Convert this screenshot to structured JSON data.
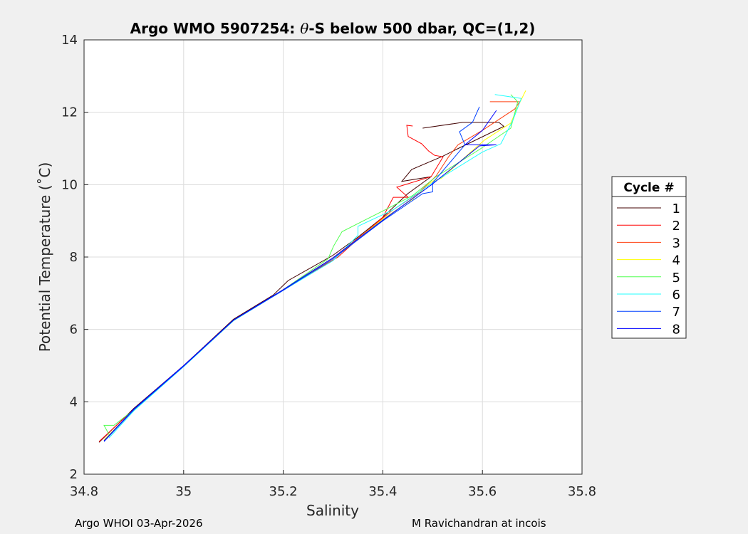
{
  "chart_data": {
    "type": "line",
    "title_prefix": "Argo WMO 5907254: ",
    "title_theta": "θ",
    "title_suffix": "-S below 500 dbar,  QC=(1,2)",
    "xlabel": "Salinity",
    "ylabel": "Potential Temperature (˚C)",
    "xlim": [
      34.8,
      35.8
    ],
    "ylim": [
      2,
      14
    ],
    "xticks": [
      "34.8",
      "35",
      "35.2",
      "35.4",
      "35.6",
      "35.8"
    ],
    "xtick_values": [
      34.8,
      35.0,
      35.2,
      35.4,
      35.6,
      35.8
    ],
    "yticks": [
      "2",
      "4",
      "6",
      "8",
      "10",
      "12",
      "14"
    ],
    "ytick_values": [
      2,
      4,
      6,
      8,
      10,
      12,
      14
    ],
    "grid": true,
    "legend_title": "Cycle #",
    "legend_placement": "right",
    "series": [
      {
        "name": "1",
        "color": "#400000",
        "points": [
          [
            34.83,
            2.88
          ],
          [
            34.9,
            3.82
          ],
          [
            35.0,
            5.0
          ],
          [
            35.1,
            6.28
          ],
          [
            35.18,
            6.95
          ],
          [
            35.21,
            7.35
          ],
          [
            35.3,
            8.05
          ],
          [
            35.35,
            8.55
          ],
          [
            35.4,
            9.1
          ],
          [
            35.45,
            9.75
          ],
          [
            35.497,
            10.22
          ],
          [
            35.438,
            10.09
          ],
          [
            35.458,
            10.42
          ],
          [
            35.521,
            10.79
          ],
          [
            35.547,
            10.97
          ],
          [
            35.643,
            11.61
          ],
          [
            35.633,
            11.72
          ],
          [
            35.56,
            11.72
          ],
          [
            35.48,
            11.56
          ]
        ]
      },
      {
        "name": "2",
        "color": "#ff0000",
        "points": [
          [
            34.83,
            2.9
          ],
          [
            34.9,
            3.8
          ],
          [
            35.0,
            5.0
          ],
          [
            35.1,
            6.26
          ],
          [
            35.2,
            7.1
          ],
          [
            35.31,
            8.0
          ],
          [
            35.35,
            8.5
          ],
          [
            35.4,
            9.1
          ],
          [
            35.421,
            9.65
          ],
          [
            35.451,
            9.65
          ],
          [
            35.428,
            9.93
          ],
          [
            35.497,
            10.22
          ],
          [
            35.521,
            10.77
          ],
          [
            35.504,
            10.81
          ],
          [
            35.492,
            10.93
          ],
          [
            35.478,
            11.13
          ],
          [
            35.451,
            11.33
          ],
          [
            35.448,
            11.64
          ],
          [
            35.46,
            11.62
          ]
        ]
      },
      {
        "name": "3",
        "color": "#ff4010",
        "points": [
          [
            34.84,
            2.92
          ],
          [
            34.9,
            3.78
          ],
          [
            35.0,
            4.98
          ],
          [
            35.1,
            6.25
          ],
          [
            35.2,
            7.1
          ],
          [
            35.3,
            7.98
          ],
          [
            35.38,
            8.85
          ],
          [
            35.42,
            9.3
          ],
          [
            35.47,
            9.75
          ],
          [
            35.507,
            10.24
          ],
          [
            35.532,
            10.77
          ],
          [
            35.551,
            11.1
          ],
          [
            35.6,
            11.5
          ],
          [
            35.665,
            12.09
          ],
          [
            35.675,
            12.29
          ],
          [
            35.615,
            12.29
          ]
        ]
      },
      {
        "name": "4",
        "color": "#ffff00",
        "points": [
          [
            34.84,
            2.95
          ],
          [
            34.9,
            3.78
          ],
          [
            35.0,
            4.98
          ],
          [
            35.1,
            6.24
          ],
          [
            35.2,
            7.1
          ],
          [
            35.3,
            7.95
          ],
          [
            35.4,
            9.05
          ],
          [
            35.46,
            9.6
          ],
          [
            35.5,
            10.1
          ],
          [
            35.518,
            10.18
          ],
          [
            35.571,
            10.83
          ],
          [
            35.604,
            11.23
          ],
          [
            35.657,
            11.7
          ],
          [
            35.673,
            12.21
          ],
          [
            35.687,
            12.6
          ]
        ]
      },
      {
        "name": "5",
        "color": "#50ff50",
        "points": [
          [
            34.85,
            3.1
          ],
          [
            34.84,
            3.35
          ],
          [
            34.86,
            3.35
          ],
          [
            34.9,
            3.78
          ],
          [
            35.0,
            4.98
          ],
          [
            35.1,
            6.25
          ],
          [
            35.2,
            7.1
          ],
          [
            35.29,
            7.95
          ],
          [
            35.301,
            8.3
          ],
          [
            35.318,
            8.7
          ],
          [
            35.404,
            9.3
          ],
          [
            35.46,
            9.7
          ],
          [
            35.507,
            10.22
          ],
          [
            35.594,
            10.97
          ],
          [
            35.657,
            11.56
          ],
          [
            35.671,
            12.29
          ],
          [
            35.657,
            12.49
          ]
        ]
      },
      {
        "name": "6",
        "color": "#20ffff",
        "points": [
          [
            34.85,
            3.0
          ],
          [
            34.9,
            3.75
          ],
          [
            35.0,
            4.97
          ],
          [
            35.1,
            6.24
          ],
          [
            35.2,
            7.08
          ],
          [
            35.3,
            7.9
          ],
          [
            35.35,
            8.6
          ],
          [
            35.35,
            8.85
          ],
          [
            35.42,
            9.3
          ],
          [
            35.5,
            10.05
          ],
          [
            35.6,
            10.9
          ],
          [
            35.637,
            11.13
          ],
          [
            35.661,
            11.77
          ],
          [
            35.678,
            12.38
          ],
          [
            35.625,
            12.49
          ]
        ]
      },
      {
        "name": "7",
        "color": "#0040ff",
        "points": [
          [
            34.84,
            2.9
          ],
          [
            34.9,
            3.78
          ],
          [
            35.0,
            4.98
          ],
          [
            35.1,
            6.25
          ],
          [
            35.2,
            7.08
          ],
          [
            35.3,
            7.95
          ],
          [
            35.4,
            9.0
          ],
          [
            35.48,
            9.75
          ],
          [
            35.5,
            9.8
          ],
          [
            35.5,
            10.05
          ],
          [
            35.565,
            11.1
          ],
          [
            35.554,
            11.46
          ],
          [
            35.58,
            11.72
          ],
          [
            35.594,
            12.15
          ]
        ]
      },
      {
        "name": "8",
        "color": "#0000ff",
        "points": [
          [
            34.84,
            2.92
          ],
          [
            34.9,
            3.8
          ],
          [
            35.0,
            5.0
          ],
          [
            35.1,
            6.26
          ],
          [
            35.2,
            7.1
          ],
          [
            35.3,
            7.98
          ],
          [
            35.4,
            9.02
          ],
          [
            35.5,
            10.02
          ],
          [
            35.594,
            11.07
          ],
          [
            35.628,
            11.1
          ],
          [
            35.565,
            11.1
          ],
          [
            35.6,
            11.5
          ],
          [
            35.628,
            12.05
          ]
        ]
      }
    ]
  },
  "footer": {
    "left": "Argo WHOI 03-Apr-2026",
    "right": "M Ravichandran at incois"
  }
}
